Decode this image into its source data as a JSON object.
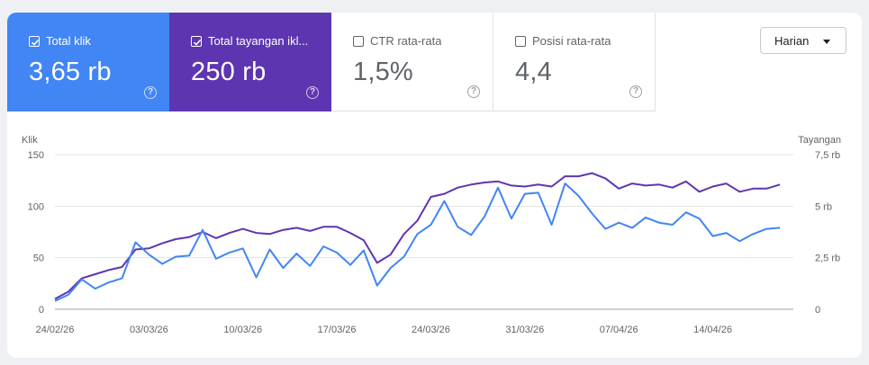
{
  "metrics": [
    {
      "label": "Total klik",
      "value": "3,65 rb",
      "checked": true
    },
    {
      "label": "Total tayangan ikl...",
      "value": "250 rb",
      "checked": true
    },
    {
      "label": "CTR rata-rata",
      "value": "1,5%",
      "checked": false
    },
    {
      "label": "Posisi rata-rata",
      "value": "4,4",
      "checked": false
    }
  ],
  "help_glyph": "?",
  "period_select": {
    "selected": "Harian"
  },
  "colors": {
    "clicks": "#4285f4",
    "impressions": "#5e35b1"
  },
  "icons": [
    "checkbox-icon",
    "help-icon",
    "caret-down-icon"
  ],
  "chart_data": {
    "type": "line",
    "left_axis": {
      "title": "Klik",
      "ticks": [
        "0",
        "50",
        "100",
        "150"
      ],
      "range": [
        0,
        150
      ]
    },
    "right_axis": {
      "title": "Tayangan",
      "ticks": [
        "0",
        "2,5 rb",
        "5 rb",
        "7,5 rb"
      ],
      "range": [
        0,
        7500
      ]
    },
    "x_tick_labels": [
      "24/02/26",
      "03/03/26",
      "10/03/26",
      "17/03/26",
      "24/03/26",
      "31/03/26",
      "07/04/26",
      "14/04/26"
    ],
    "x": [
      "24/02/26",
      "25/02/26",
      "26/02/26",
      "27/02/26",
      "28/02/26",
      "01/03/26",
      "02/03/26",
      "03/03/26",
      "04/03/26",
      "05/03/26",
      "06/03/26",
      "07/03/26",
      "08/03/26",
      "09/03/26",
      "10/03/26",
      "11/03/26",
      "12/03/26",
      "13/03/26",
      "14/03/26",
      "15/03/26",
      "16/03/26",
      "17/03/26",
      "18/03/26",
      "19/03/26",
      "20/03/26",
      "21/03/26",
      "22/03/26",
      "23/03/26",
      "24/03/26",
      "25/03/26",
      "26/03/26",
      "27/03/26",
      "28/03/26",
      "29/03/26",
      "30/03/26",
      "31/03/26",
      "01/04/26",
      "02/04/26",
      "03/04/26",
      "04/04/26",
      "05/04/26",
      "06/04/26",
      "07/04/26",
      "08/04/26",
      "09/04/26",
      "10/04/26",
      "11/04/26",
      "12/04/26",
      "13/04/26",
      "14/04/26",
      "15/04/26",
      "16/04/26",
      "17/04/26",
      "18/04/26",
      "19/04/26",
      "20/04/26"
    ],
    "series": [
      {
        "name": "Total klik",
        "axis": "left",
        "values": [
          8,
          14,
          29,
          20,
          26,
          30,
          65,
          53,
          44,
          51,
          52,
          77,
          49,
          55,
          59,
          31,
          58,
          40,
          54,
          42,
          61,
          55,
          43,
          57,
          23,
          40,
          51,
          73,
          82,
          105,
          80,
          72,
          90,
          118,
          88,
          112,
          113,
          82,
          122,
          110,
          93,
          78,
          84,
          79,
          89,
          84,
          82,
          94,
          88,
          71,
          74,
          66,
          73,
          78,
          79,
          null
        ]
      },
      {
        "name": "Total tayangan iklan",
        "axis": "left",
        "values": [
          10,
          17,
          30,
          34,
          38,
          41,
          58,
          59,
          64,
          68,
          70,
          75,
          69,
          74,
          78,
          74,
          73,
          77,
          79,
          76,
          80,
          80,
          74,
          67,
          45,
          53,
          73,
          86,
          109,
          112,
          118,
          121,
          123,
          124,
          120,
          119,
          121,
          119,
          129,
          129,
          132,
          127,
          117,
          122,
          120,
          121,
          118,
          124,
          114,
          119,
          122,
          114,
          117,
          117,
          121,
          null
        ]
      }
    ]
  }
}
